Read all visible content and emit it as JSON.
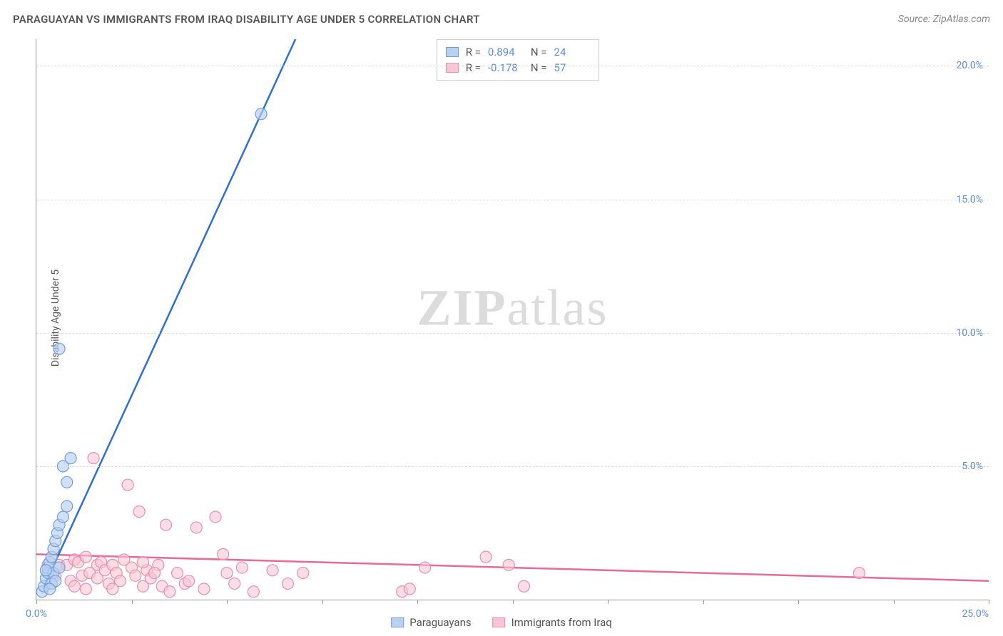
{
  "header": {
    "title": "PARAGUAYAN VS IMMIGRANTS FROM IRAQ DISABILITY AGE UNDER 5 CORRELATION CHART",
    "source": "Source: ZipAtlas.com"
  },
  "chart": {
    "type": "scatter",
    "ylabel": "Disability Age Under 5",
    "watermark_bold": "ZIP",
    "watermark_rest": "atlas",
    "background_color": "#ffffff",
    "grid_color": "#dddddd",
    "axis_color": "#999999",
    "xlim": [
      0,
      25
    ],
    "ylim": [
      0,
      21
    ],
    "xticks": [
      0,
      2.5,
      5,
      7.5,
      10,
      12.5,
      15,
      17.5,
      20,
      22.5,
      25
    ],
    "xtick_labels": {
      "0": "0.0%",
      "25": "25.0%"
    },
    "yticks": [
      5,
      10,
      15,
      20
    ],
    "ytick_labels": {
      "5": "5.0%",
      "10": "10.0%",
      "15": "15.0%",
      "20": "20.0%"
    },
    "tick_color": "#5b8dd6",
    "label_fontsize": 14,
    "series": [
      {
        "name": "Paraguayans",
        "color_fill": "#b9d0ef",
        "color_stroke": "#6f9fdc",
        "line_color": "#2f6fd0",
        "marker_radius": 8,
        "marker_opacity": 0.65,
        "r_value": "0.894",
        "n_value": "24",
        "trend": {
          "x1": 0.2,
          "y1": 0.5,
          "x2": 6.8,
          "y2": 21
        },
        "points": [
          [
            0.15,
            0.3
          ],
          [
            0.2,
            0.5
          ],
          [
            0.25,
            0.8
          ],
          [
            0.3,
            1.0
          ],
          [
            0.3,
            1.2
          ],
          [
            0.35,
            1.4
          ],
          [
            0.4,
            1.6
          ],
          [
            0.45,
            1.9
          ],
          [
            0.4,
            0.6
          ],
          [
            0.5,
            2.2
          ],
          [
            0.55,
            2.5
          ],
          [
            0.45,
            1.0
          ],
          [
            0.6,
            2.8
          ],
          [
            0.7,
            3.1
          ],
          [
            0.6,
            1.2
          ],
          [
            0.8,
            3.5
          ],
          [
            0.5,
            0.7
          ],
          [
            0.8,
            4.4
          ],
          [
            0.7,
            5.0
          ],
          [
            0.9,
            5.3
          ],
          [
            0.35,
            0.4
          ],
          [
            0.6,
            9.4
          ],
          [
            5.9,
            18.2
          ],
          [
            0.25,
            1.1
          ]
        ]
      },
      {
        "name": "Immigrants from Iraq",
        "color_fill": "#f7c6d3",
        "color_stroke": "#e98fad",
        "line_color": "#e86a99",
        "marker_radius": 8,
        "marker_opacity": 0.6,
        "r_value": "-0.178",
        "n_value": "57",
        "trend": {
          "x1": 0,
          "y1": 1.7,
          "x2": 25,
          "y2": 0.7
        },
        "points": [
          [
            0.3,
            1.3
          ],
          [
            0.5,
            0.9
          ],
          [
            0.6,
            1.3
          ],
          [
            0.8,
            1.3
          ],
          [
            0.9,
            0.7
          ],
          [
            1.0,
            1.5
          ],
          [
            1.1,
            1.4
          ],
          [
            1.2,
            0.9
          ],
          [
            1.3,
            1.6
          ],
          [
            1.4,
            1.0
          ],
          [
            1.5,
            5.3
          ],
          [
            1.6,
            1.3
          ],
          [
            1.6,
            0.8
          ],
          [
            1.7,
            1.4
          ],
          [
            1.8,
            1.1
          ],
          [
            1.9,
            0.6
          ],
          [
            2.0,
            1.3
          ],
          [
            2.1,
            1.0
          ],
          [
            2.2,
            0.7
          ],
          [
            2.3,
            1.5
          ],
          [
            2.4,
            4.3
          ],
          [
            2.5,
            1.2
          ],
          [
            2.6,
            0.9
          ],
          [
            2.7,
            3.3
          ],
          [
            2.8,
            0.5
          ],
          [
            2.9,
            1.1
          ],
          [
            3.0,
            0.8
          ],
          [
            3.2,
            1.3
          ],
          [
            3.3,
            0.5
          ],
          [
            3.4,
            2.8
          ],
          [
            3.5,
            0.3
          ],
          [
            3.7,
            1.0
          ],
          [
            3.9,
            0.6
          ],
          [
            4.2,
            2.7
          ],
          [
            4.4,
            0.4
          ],
          [
            4.7,
            3.1
          ],
          [
            4.9,
            1.7
          ],
          [
            5.0,
            1.0
          ],
          [
            5.2,
            0.6
          ],
          [
            5.4,
            1.2
          ],
          [
            5.7,
            0.3
          ],
          [
            6.2,
            1.1
          ],
          [
            6.6,
            0.6
          ],
          [
            7.0,
            1.0
          ],
          [
            9.6,
            0.3
          ],
          [
            9.8,
            0.4
          ],
          [
            10.2,
            1.2
          ],
          [
            11.8,
            1.6
          ],
          [
            12.4,
            1.3
          ],
          [
            12.8,
            0.5
          ],
          [
            21.6,
            1.0
          ],
          [
            1.0,
            0.5
          ],
          [
            1.3,
            0.4
          ],
          [
            2.0,
            0.4
          ],
          [
            2.8,
            1.4
          ],
          [
            3.1,
            1.0
          ],
          [
            4.0,
            0.7
          ]
        ]
      }
    ]
  },
  "legend_stats": {
    "r_label": "R  = ",
    "n_label": "N  = "
  },
  "bottom_legend": {
    "items": [
      "Paraguayans",
      "Immigrants from Iraq"
    ]
  }
}
